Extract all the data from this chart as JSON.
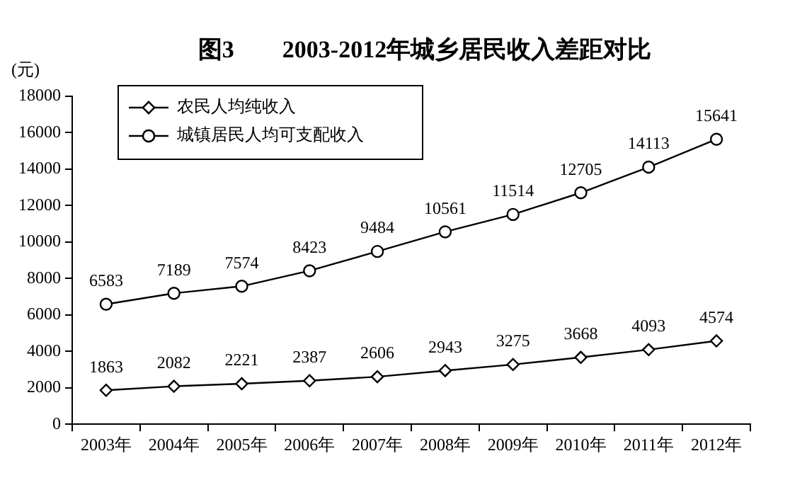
{
  "chart_data": {
    "type": "line",
    "title": "图3　　2003-2012年城乡居民收入差距对比",
    "ylabel": "(元)",
    "categories": [
      "2003年",
      "2004年",
      "2005年",
      "2006年",
      "2007年",
      "2008年",
      "2009年",
      "2010年",
      "2011年",
      "2012年"
    ],
    "series": [
      {
        "name": "农民人均纯收入",
        "color": "#000000",
        "marker": "diamond",
        "values": [
          1863,
          2082,
          2221,
          2387,
          2606,
          2943,
          3275,
          3668,
          4093,
          4574
        ]
      },
      {
        "name": "城镇居民人均可支配收入",
        "color": "#000000",
        "marker": "circle",
        "values": [
          6583,
          7189,
          7574,
          8423,
          9484,
          10561,
          11514,
          12705,
          14113,
          15641
        ]
      }
    ],
    "ylim": [
      0,
      18000
    ],
    "yticks": [
      0,
      2000,
      4000,
      6000,
      8000,
      10000,
      12000,
      14000,
      16000,
      18000
    ],
    "grid": false,
    "legend": "top left",
    "data_labels": true,
    "line_style": "solid"
  }
}
